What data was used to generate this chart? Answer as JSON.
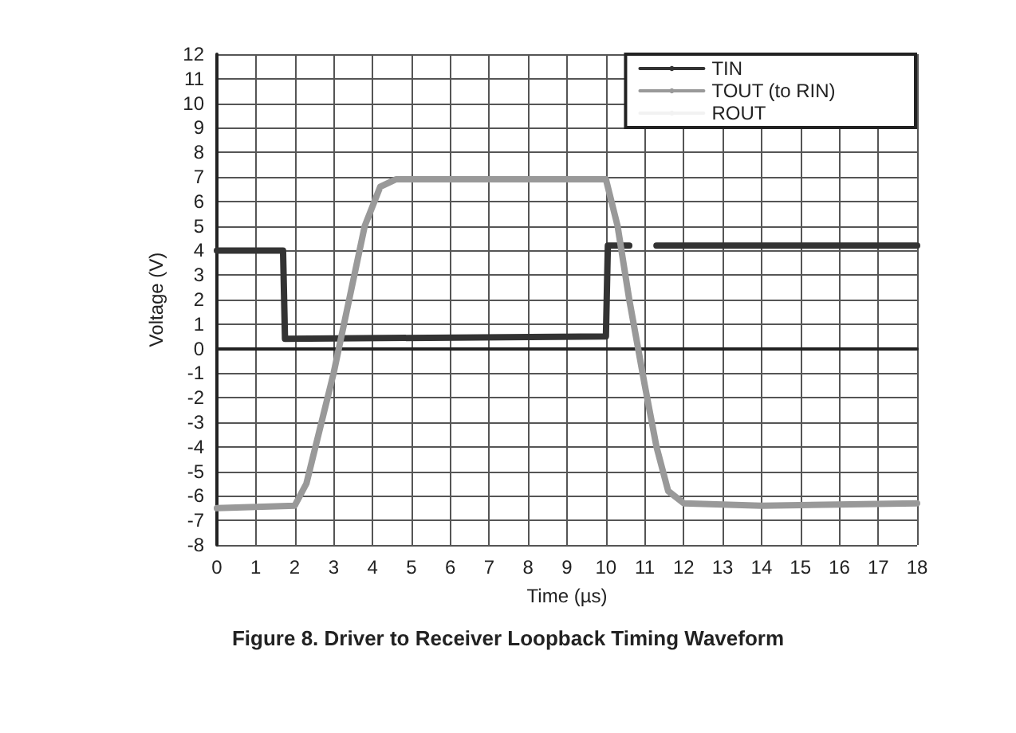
{
  "chart_data": {
    "type": "line",
    "title": "Figure 8. Driver to Receiver Loopback Timing Waveform",
    "xlabel": "Time (µs)",
    "ylabel": "Voltage (V)",
    "xlim": [
      0,
      18
    ],
    "xticks": [
      0,
      1,
      2,
      3,
      4,
      5,
      6,
      7,
      8,
      9,
      10,
      11,
      12,
      13,
      14,
      15,
      16,
      17,
      18
    ],
    "ylim": [
      -8,
      12
    ],
    "yticks": [
      -8,
      -7,
      -6,
      -5,
      -4,
      -3,
      -2,
      -1,
      0,
      1,
      2,
      3,
      4,
      5,
      6,
      7,
      8,
      9,
      10,
      11,
      12
    ],
    "grid": true,
    "legend": "top right",
    "marker": "none",
    "line_style": "solid",
    "series": [
      {
        "name": "TIN",
        "color": "#333333",
        "x": [
          0,
          1.7,
          1.75,
          10,
          10.05,
          10.6,
          null,
          11.3,
          18
        ],
        "values": [
          4,
          4,
          0.4,
          0.5,
          4.2,
          4.2,
          null,
          4.2,
          4.2
        ]
      },
      {
        "name": "TOUT (to RIN)",
        "color": "#999999",
        "x": [
          0,
          2,
          2.3,
          3,
          3.4,
          3.8,
          4.2,
          4.6,
          10,
          10.3,
          10.6,
          11,
          11.3,
          11.6,
          12,
          14,
          18
        ],
        "values": [
          -6.5,
          -6.4,
          -5.5,
          -1,
          2,
          5,
          6.6,
          6.9,
          6.9,
          5,
          2,
          -1.5,
          -4,
          -5.8,
          -6.3,
          -6.4,
          -6.3
        ]
      },
      {
        "name": "ROUT",
        "color": "#f2f2f2"
      }
    ]
  }
}
